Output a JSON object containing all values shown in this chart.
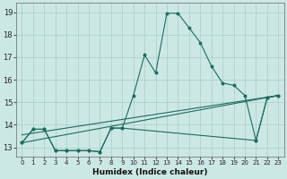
{
  "xlabel": "Humidex (Indice chaleur)",
  "background_color": "#cce8e4",
  "grid_color": "#a8ccc8",
  "line_color": "#1e6b5e",
  "xlim": [
    -0.5,
    23.5
  ],
  "ylim": [
    12.6,
    19.4
  ],
  "yticks": [
    13,
    14,
    15,
    16,
    17,
    18,
    19
  ],
  "xticks": [
    0,
    1,
    2,
    3,
    4,
    5,
    6,
    7,
    8,
    9,
    10,
    11,
    12,
    13,
    14,
    15,
    16,
    17,
    18,
    19,
    20,
    21,
    22,
    23
  ],
  "curve_x": [
    0,
    1,
    2,
    3,
    4,
    5,
    6,
    7,
    8,
    9,
    10,
    11,
    12,
    13,
    14,
    15,
    16,
    17,
    18,
    19,
    20,
    21,
    22,
    23
  ],
  "curve_y": [
    13.2,
    13.8,
    13.8,
    12.85,
    12.85,
    12.85,
    12.85,
    12.8,
    13.85,
    13.85,
    15.3,
    17.1,
    16.3,
    18.95,
    18.95,
    18.3,
    17.65,
    16.6,
    15.85,
    15.75,
    15.3,
    13.3,
    15.2,
    15.3
  ],
  "lower_x": [
    0,
    1,
    2,
    3,
    4,
    5,
    6,
    7,
    8,
    9,
    21,
    22,
    23
  ],
  "lower_y": [
    13.2,
    13.8,
    13.8,
    12.85,
    12.85,
    12.85,
    12.85,
    12.8,
    13.85,
    13.85,
    13.3,
    15.2,
    15.3
  ],
  "line3_x": [
    0,
    23
  ],
  "line3_y": [
    13.2,
    15.3
  ],
  "line4_x": [
    0,
    23
  ],
  "line4_y": [
    13.55,
    15.3
  ]
}
